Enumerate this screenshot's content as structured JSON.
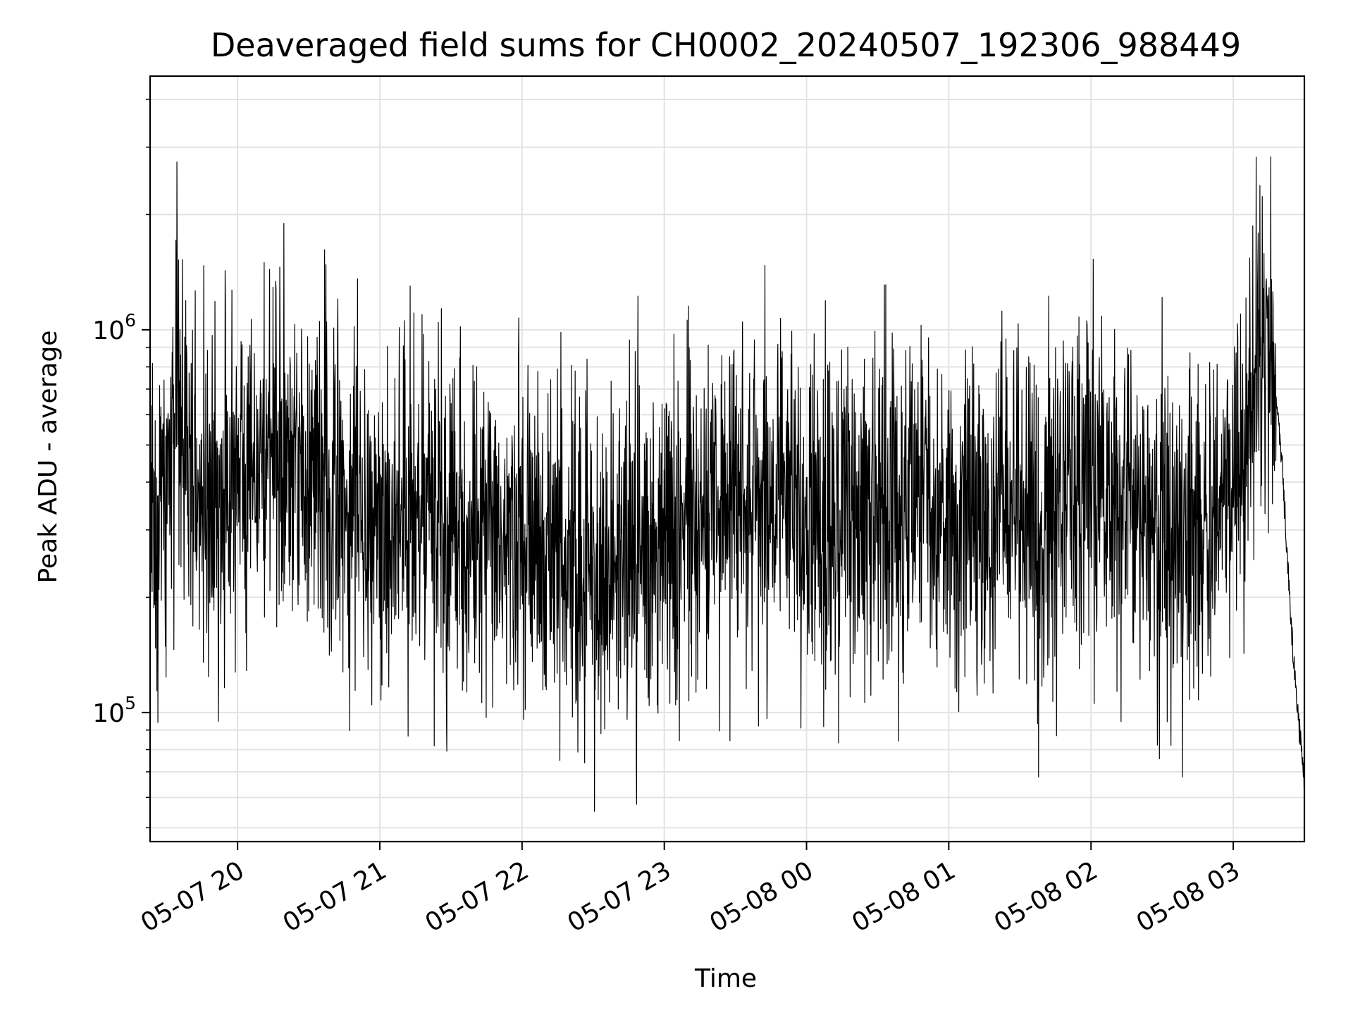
{
  "chart_data": {
    "type": "line",
    "title": "Deaveraged field sums for CH0002_20240507_192306_988449",
    "xlabel": "Time",
    "ylabel": "Peak ADU - average",
    "x_axis_type": "time",
    "y_scale": "log",
    "xlim": [
      "2024-05-07 19:23:06",
      "2024-05-08 03:30:00"
    ],
    "ylim": [
      46000,
      4600000
    ],
    "x_ticks": [
      "2024-05-07 20:00",
      "2024-05-07 21:00",
      "2024-05-07 22:00",
      "2024-05-07 23:00",
      "2024-05-08 00:00",
      "2024-05-08 01:00",
      "2024-05-08 02:00",
      "2024-05-08 03:00"
    ],
    "x_tick_labels": [
      "05-07 20",
      "05-07 21",
      "05-07 22",
      "05-07 23",
      "05-08 00",
      "05-08 01",
      "05-08 02",
      "05-08 03"
    ],
    "y_tick_labels": [
      {
        "value": 100000,
        "base": "10",
        "exponent": "5"
      },
      {
        "value": 1000000,
        "base": "10",
        "exponent": "6"
      }
    ],
    "grid": true,
    "legend": "none",
    "series": [
      {
        "color": "#000000",
        "x": [
          "2024-05-07 19:23",
          "2024-05-07 19:30",
          "2024-05-07 19:37",
          "2024-05-07 19:45",
          "2024-05-07 19:52",
          "2024-05-07 20:00",
          "2024-05-07 20:15",
          "2024-05-07 20:30",
          "2024-05-07 20:45",
          "2024-05-07 21:00",
          "2024-05-07 21:15",
          "2024-05-07 21:30",
          "2024-05-07 21:45",
          "2024-05-07 22:00",
          "2024-05-07 22:15",
          "2024-05-07 22:30",
          "2024-05-07 22:45",
          "2024-05-07 23:00",
          "2024-05-07 23:15",
          "2024-05-07 23:30",
          "2024-05-07 23:45",
          "2024-05-08 00:00",
          "2024-05-08 00:15",
          "2024-05-08 00:30",
          "2024-05-08 00:45",
          "2024-05-08 01:00",
          "2024-05-08 01:15",
          "2024-05-08 01:30",
          "2024-05-08 01:45",
          "2024-05-08 02:00",
          "2024-05-08 02:15",
          "2024-05-08 02:30",
          "2024-05-08 02:45",
          "2024-05-08 03:00",
          "2024-05-08 03:08",
          "2024-05-08 03:15",
          "2024-05-08 03:20",
          "2024-05-08 03:25",
          "2024-05-08 03:30"
        ],
        "y": [
          250000,
          450000,
          550000,
          380000,
          320000,
          450000,
          480000,
          400000,
          380000,
          330000,
          350000,
          300000,
          260000,
          270000,
          250000,
          230000,
          260000,
          290000,
          320000,
          380000,
          350000,
          320000,
          330000,
          320000,
          350000,
          360000,
          310000,
          330000,
          380000,
          390000,
          350000,
          300000,
          320000,
          350000,
          600000,
          1100000,
          500000,
          150000,
          65000
        ]
      }
    ]
  }
}
